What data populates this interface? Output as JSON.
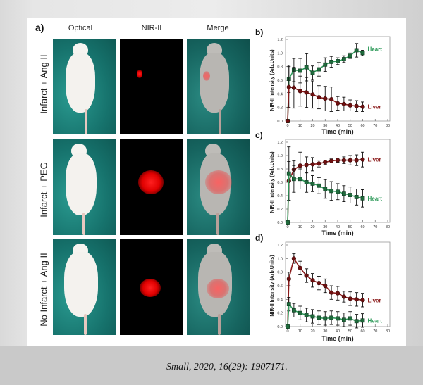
{
  "panel_a": {
    "label": "a)",
    "columns": [
      "Optical",
      "NIR-II",
      "Merge"
    ],
    "rows": [
      "Infarct + Ang II",
      "Infarct + PEG",
      "No Infarct + Ang II"
    ]
  },
  "citation": "Small, 2020, 16(29): 1907171.",
  "colors": {
    "heart": "#2e9a5a",
    "liver": "#8a1a1a",
    "heart_marker": "#1f6b3c",
    "liver_marker": "#6e1010"
  },
  "chart_data": [
    {
      "panel": "b)",
      "type": "line",
      "xlabel": "Time (min)",
      "ylabel": "NIR-II Intensity (Arb.Units)",
      "xlim": [
        0,
        80
      ],
      "ylim": [
        0,
        1.2
      ],
      "xticks": [
        0,
        10,
        20,
        30,
        40,
        50,
        60,
        70,
        80
      ],
      "yticks": [
        "0.0",
        "0.2",
        "0.4",
        "0.6",
        "0.8",
        "1.0",
        "1.2"
      ],
      "x": [
        0,
        1,
        5,
        10,
        15,
        20,
        25,
        30,
        35,
        40,
        45,
        50,
        55,
        60
      ],
      "series": [
        {
          "name": "Heart",
          "marker": "square",
          "values": [
            0.0,
            0.62,
            0.75,
            0.74,
            0.79,
            0.71,
            0.76,
            0.83,
            0.87,
            0.88,
            0.91,
            0.96,
            1.04,
            1.0
          ],
          "errors": [
            0.0,
            0.2,
            0.17,
            0.18,
            0.2,
            0.1,
            0.1,
            0.1,
            0.08,
            0.05,
            0.05,
            0.04,
            0.1,
            0.04
          ]
        },
        {
          "name": "Liver",
          "marker": "circle",
          "values": [
            0.0,
            0.5,
            0.49,
            0.44,
            0.42,
            0.39,
            0.35,
            0.33,
            0.32,
            0.26,
            0.25,
            0.23,
            0.22,
            0.21
          ],
          "errors": [
            0.0,
            0.3,
            0.3,
            0.22,
            0.22,
            0.2,
            0.17,
            0.18,
            0.18,
            0.1,
            0.1,
            0.08,
            0.08,
            0.07
          ]
        }
      ]
    },
    {
      "panel": "c)",
      "type": "line",
      "xlabel": "Time (min)",
      "ylabel": "NIR-II Intensity (Arb.Units)",
      "xlim": [
        0,
        80
      ],
      "ylim": [
        0,
        1.2
      ],
      "xticks": [
        0,
        10,
        20,
        30,
        40,
        50,
        60,
        70,
        80
      ],
      "yticks": [
        "0.0",
        "0.2",
        "0.4",
        "0.6",
        "0.8",
        "1.0",
        "1.2"
      ],
      "x": [
        0,
        1,
        5,
        10,
        15,
        20,
        25,
        30,
        35,
        40,
        45,
        50,
        55,
        60
      ],
      "series": [
        {
          "name": "Liver",
          "marker": "circle",
          "values": [
            0.0,
            0.62,
            0.79,
            0.85,
            0.86,
            0.87,
            0.88,
            0.9,
            0.92,
            0.93,
            0.93,
            0.93,
            0.93,
            0.94
          ],
          "errors": [
            0.0,
            0.29,
            0.13,
            0.2,
            0.12,
            0.1,
            0.05,
            0.03,
            0.03,
            0.03,
            0.05,
            0.07,
            0.08,
            0.11
          ]
        },
        {
          "name": "Heart",
          "marker": "square",
          "values": [
            0.0,
            0.73,
            0.65,
            0.65,
            0.6,
            0.58,
            0.55,
            0.5,
            0.47,
            0.46,
            0.43,
            0.41,
            0.38,
            0.36
          ],
          "errors": [
            0.0,
            0.4,
            0.2,
            0.15,
            0.15,
            0.12,
            0.12,
            0.14,
            0.14,
            0.12,
            0.12,
            0.12,
            0.12,
            0.13
          ]
        }
      ]
    },
    {
      "panel": "d)",
      "type": "line",
      "xlabel": "Time (min)",
      "ylabel": "NIR-II Intensity (Arb.Units)",
      "xlim": [
        0,
        80
      ],
      "ylim": [
        0,
        1.2
      ],
      "xticks": [
        0,
        10,
        20,
        30,
        40,
        50,
        60,
        70,
        80
      ],
      "yticks": [
        "0.0",
        "0.2",
        "0.4",
        "0.6",
        "0.8",
        "1.0",
        "1.2"
      ],
      "x": [
        0,
        1,
        5,
        10,
        15,
        20,
        25,
        30,
        35,
        40,
        45,
        50,
        55,
        60
      ],
      "series": [
        {
          "name": "Liver",
          "marker": "circle",
          "values": [
            0.0,
            0.7,
            1.0,
            0.86,
            0.75,
            0.68,
            0.64,
            0.6,
            0.5,
            0.49,
            0.44,
            0.41,
            0.4,
            0.39
          ],
          "errors": [
            0.0,
            0.1,
            0.07,
            0.1,
            0.1,
            0.1,
            0.1,
            0.1,
            0.1,
            0.1,
            0.08,
            0.1,
            0.1,
            0.1
          ]
        },
        {
          "name": "Heart",
          "marker": "square",
          "values": [
            0.0,
            0.33,
            0.24,
            0.2,
            0.17,
            0.15,
            0.13,
            0.12,
            0.13,
            0.12,
            0.1,
            0.12,
            0.08,
            0.09
          ],
          "errors": [
            0.0,
            0.1,
            0.1,
            0.1,
            0.1,
            0.1,
            0.1,
            0.1,
            0.1,
            0.1,
            0.1,
            0.1,
            0.1,
            0.1
          ]
        }
      ]
    }
  ]
}
